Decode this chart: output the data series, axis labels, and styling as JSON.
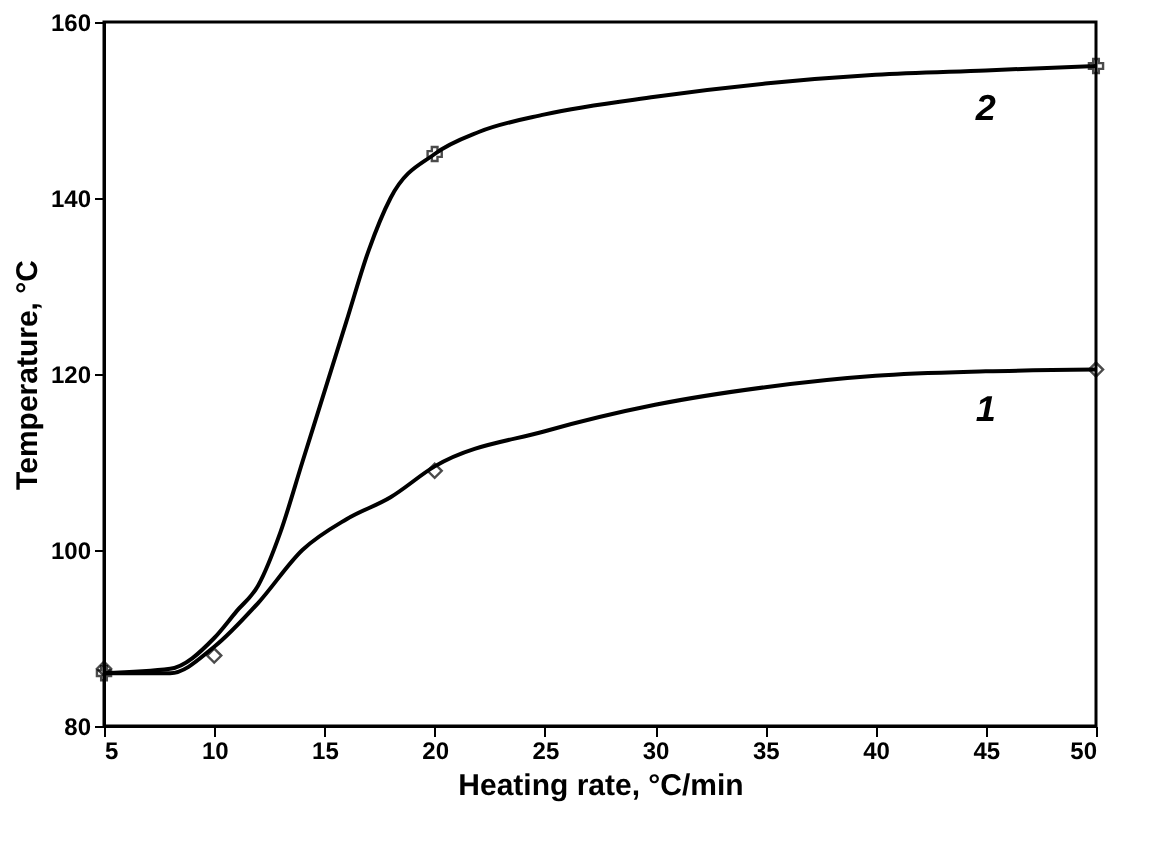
{
  "chart_data": {
    "type": "line",
    "xlabel": "Heating rate, °C/min",
    "ylabel": "Temperature, °C",
    "xlim": [
      5,
      50
    ],
    "ylim": [
      80,
      160
    ],
    "xticks": [
      5,
      10,
      15,
      20,
      25,
      30,
      35,
      40,
      45,
      50
    ],
    "yticks": [
      80,
      100,
      120,
      140,
      160
    ],
    "grid": false,
    "line_style": "solid",
    "series": [
      {
        "name": "1",
        "color": "#000000",
        "marker": "none",
        "x": [
          5,
          8,
          10,
          12,
          14,
          16,
          18,
          20,
          25,
          30,
          35,
          40,
          45,
          50
        ],
        "values": [
          86,
          86,
          89,
          94,
          100,
          103.5,
          106,
          109.5,
          113.5,
          116.5,
          118.5,
          119.8,
          120.3,
          120.5
        ]
      },
      {
        "name": "2",
        "color": "#000000",
        "marker": "none",
        "x": [
          5,
          8,
          10,
          11,
          12,
          13,
          14,
          15,
          16,
          17,
          18,
          20,
          22,
          25,
          30,
          35,
          40,
          45,
          50
        ],
        "values": [
          86,
          86.5,
          90,
          93,
          96,
          102,
          110,
          118,
          126,
          134,
          140,
          145,
          147.5,
          149.5,
          151.5,
          153,
          154,
          154.5,
          155
        ]
      },
      {
        "type": "scatter",
        "color": "#000000",
        "marker": "diamond",
        "x": [
          5,
          10,
          20,
          50
        ],
        "values": [
          86.5,
          88,
          109,
          120.5
        ]
      },
      {
        "type": "scatter",
        "color": "#000000",
        "marker": "cross",
        "x": [
          5,
          20,
          50
        ],
        "values": [
          86,
          145,
          155
        ]
      }
    ]
  }
}
